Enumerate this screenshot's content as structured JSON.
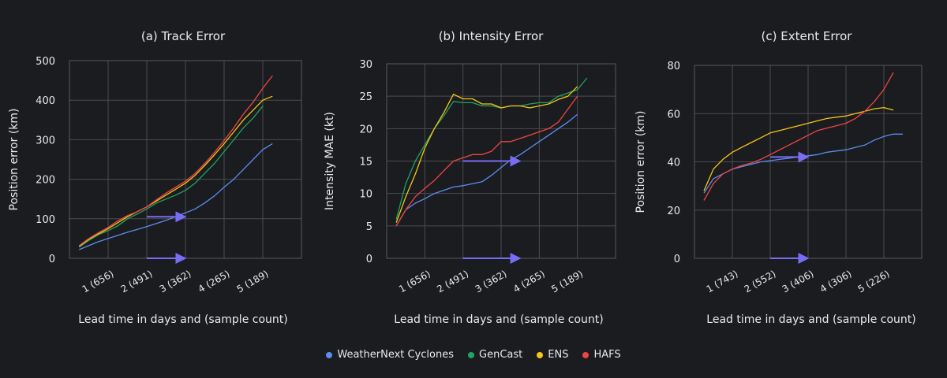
{
  "colors": {
    "WeatherNext Cyclones": "#5b8def",
    "GenCast": "#1fa463",
    "ENS": "#f5c518",
    "HAFS": "#ef4545",
    "arrow": "#7b6cf6"
  },
  "legend": [
    {
      "name": "WeatherNext Cyclones"
    },
    {
      "name": "GenCast"
    },
    {
      "name": "ENS"
    },
    {
      "name": "HAFS"
    }
  ],
  "chart_data": [
    {
      "type": "line",
      "title": "(a) Track Error",
      "xlabel": "Lead time in days and (sample count)",
      "ylabel": "Position error (km)",
      "xlim": [
        0,
        6
      ],
      "ylim": [
        0,
        500
      ],
      "yticks": [
        0,
        100,
        200,
        300,
        400,
        500
      ],
      "xticks": [
        {
          "x": 1,
          "label": "1 (656)"
        },
        {
          "x": 2,
          "label": "2 (491)"
        },
        {
          "x": 3,
          "label": "3 (362)"
        },
        {
          "x": 4,
          "label": "4 (265)"
        },
        {
          "x": 5,
          "label": "5 (189)"
        }
      ],
      "arrows": [
        {
          "x0": 2,
          "x1": 3,
          "y": 105
        },
        {
          "x0": 2,
          "x1": 3,
          "y": 0
        }
      ],
      "x": [
        0.25,
        0.5,
        0.75,
        1,
        1.25,
        1.5,
        1.75,
        2,
        2.25,
        2.5,
        2.75,
        3,
        3.25,
        3.5,
        3.75,
        4,
        4.25,
        4.5,
        4.75,
        5,
        5.25,
        5.5
      ],
      "series": [
        {
          "name": "WeatherNext Cyclones",
          "values": [
            22,
            32,
            42,
            50,
            58,
            66,
            73,
            80,
            88,
            96,
            106,
            115,
            125,
            140,
            158,
            180,
            200,
            225,
            250,
            275,
            290,
            null
          ]
        },
        {
          "name": "GenCast",
          "values": [
            28,
            45,
            60,
            70,
            82,
            100,
            112,
            125,
            140,
            150,
            160,
            172,
            190,
            215,
            240,
            270,
            300,
            330,
            355,
            385,
            null,
            null
          ]
        },
        {
          "name": "ENS",
          "values": [
            30,
            48,
            62,
            75,
            90,
            105,
            118,
            130,
            145,
            160,
            175,
            190,
            210,
            235,
            262,
            290,
            320,
            350,
            375,
            400,
            410,
            null
          ]
        },
        {
          "name": "HAFS",
          "values": [
            32,
            50,
            65,
            78,
            95,
            108,
            118,
            130,
            148,
            165,
            180,
            195,
            215,
            240,
            268,
            298,
            330,
            365,
            395,
            430,
            462,
            null
          ]
        }
      ]
    },
    {
      "type": "line",
      "title": "(b) Intensity Error",
      "xlabel": "Lead time in days and (sample count)",
      "ylabel": "Intensity MAE (kt)",
      "xlim": [
        0,
        6
      ],
      "ylim": [
        0,
        30
      ],
      "yticks": [
        0,
        5,
        10,
        15,
        20,
        25,
        30
      ],
      "xticks": [
        {
          "x": 1,
          "label": "1 (656)"
        },
        {
          "x": 2,
          "label": "2 (491)"
        },
        {
          "x": 3,
          "label": "3 (362)"
        },
        {
          "x": 4,
          "label": "4 (265)"
        },
        {
          "x": 5,
          "label": "5 (189)"
        }
      ],
      "arrows": [
        {
          "x0": 2,
          "x1": 3.5,
          "y": 15
        },
        {
          "x0": 2,
          "x1": 3.5,
          "y": 0
        }
      ],
      "x": [
        0.25,
        0.5,
        0.75,
        1,
        1.25,
        1.5,
        1.75,
        2,
        2.25,
        2.5,
        2.75,
        3,
        3.25,
        3.5,
        3.75,
        4,
        4.25,
        4.5,
        4.75,
        5,
        5.25,
        5.5
      ],
      "series": [
        {
          "name": "WeatherNext Cyclones",
          "values": [
            5,
            7.5,
            8.5,
            9.2,
            10,
            10.5,
            11,
            11.2,
            11.5,
            11.8,
            12.8,
            14,
            15.2,
            16,
            17,
            18,
            19,
            20,
            21,
            22.2,
            null,
            null
          ]
        },
        {
          "name": "GenCast",
          "values": [
            6,
            11.5,
            15,
            17.5,
            20,
            22,
            24.2,
            24,
            24,
            23.5,
            23.5,
            23.2,
            23.5,
            23.5,
            23.8,
            24,
            24,
            25,
            25.5,
            26,
            27.8,
            null
          ]
        },
        {
          "name": "ENS",
          "values": [
            5.5,
            9.5,
            13,
            17,
            20,
            22.5,
            25.3,
            24.6,
            24.6,
            23.8,
            23.8,
            23.2,
            23.5,
            23.5,
            23.2,
            23.5,
            23.8,
            24.5,
            25,
            26.5,
            null,
            null
          ]
        },
        {
          "name": "HAFS",
          "values": [
            5,
            7.5,
            9.5,
            10.8,
            12,
            13.5,
            15,
            15.5,
            16,
            16,
            16.5,
            18,
            18,
            18.5,
            19,
            19.5,
            20,
            21,
            23,
            25,
            null,
            null
          ]
        }
      ]
    },
    {
      "type": "line",
      "title": "(c) Extent Error",
      "xlabel": "Lead time in days and (sample count)",
      "ylabel": "Position error (km)",
      "xlim": [
        0,
        6
      ],
      "ylim": [
        0,
        80
      ],
      "yticks": [
        0,
        20,
        40,
        60,
        80
      ],
      "xticks": [
        {
          "x": 1,
          "label": "1 (743)"
        },
        {
          "x": 2,
          "label": "2 (552)"
        },
        {
          "x": 3,
          "label": "3 (406)"
        },
        {
          "x": 4,
          "label": "4 (306)"
        },
        {
          "x": 5,
          "label": "5 (226)"
        }
      ],
      "arrows": [
        {
          "x0": 2,
          "x1": 3,
          "y": 42
        },
        {
          "x0": 2,
          "x1": 3,
          "y": 0
        }
      ],
      "x": [
        0.25,
        0.5,
        0.75,
        1,
        1.25,
        1.5,
        1.75,
        2,
        2.25,
        2.5,
        2.75,
        3,
        3.25,
        3.5,
        3.75,
        4,
        4.25,
        4.5,
        4.75,
        5,
        5.25,
        5.5
      ],
      "series": [
        {
          "name": "WeatherNext Cyclones",
          "values": [
            27,
            33,
            35,
            37,
            38,
            39,
            40,
            40.5,
            41,
            41.5,
            42,
            42.5,
            43,
            44,
            44.5,
            45,
            46,
            47,
            49,
            50.5,
            51.5,
            51.5
          ]
        },
        {
          "name": "ENS",
          "values": [
            28,
            37,
            41,
            44,
            46,
            48,
            50,
            52,
            53,
            54,
            55,
            56,
            57,
            58,
            58.5,
            59,
            60,
            61,
            62,
            62.5,
            61.5,
            null
          ]
        },
        {
          "name": "HAFS",
          "values": [
            24,
            31,
            35,
            37,
            38.5,
            39.5,
            41,
            43,
            45,
            47,
            49,
            51,
            53,
            54,
            55,
            56,
            58,
            61,
            65,
            70,
            77,
            null
          ]
        }
      ]
    }
  ]
}
